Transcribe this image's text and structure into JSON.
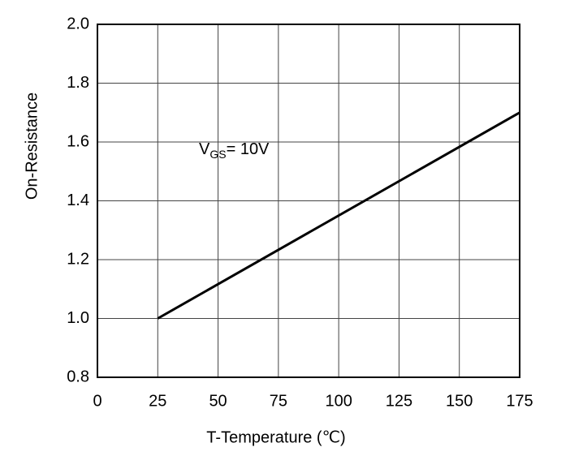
{
  "chart_data": {
    "type": "line",
    "y_label": "On-Resistance",
    "x_label": "T-Temperature (℃)",
    "annotation": {
      "main": "V",
      "sub": "GS",
      "rest": "= 10V"
    },
    "series": [
      {
        "color": "#000000",
        "x": [
          25,
          175
        ],
        "values": [
          1.0,
          1.7
        ]
      }
    ],
    "xlim": [
      0,
      175
    ],
    "xticks": [
      0,
      25,
      50,
      75,
      100,
      125,
      150,
      175
    ],
    "ylim": [
      0.8,
      2.0
    ],
    "yticks": [
      0.8,
      {
        "value": 1.0,
        "label": "1.0"
      },
      1.2,
      1.4,
      1.6,
      1.8,
      {
        "value": 2.0,
        "label": "2.0"
      }
    ],
    "grid": true
  }
}
